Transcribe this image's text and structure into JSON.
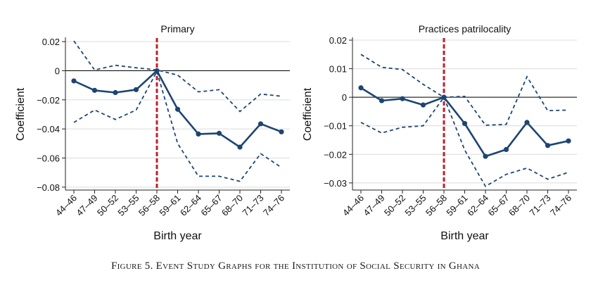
{
  "caption": "Figure 5. Event Study Graphs for the Institution of Social Security in Ghana",
  "chart_data": [
    {
      "type": "line",
      "title": "Primary",
      "xlabel": "Birth year",
      "ylabel": "Coefficient",
      "categories": [
        "44–46",
        "47–49",
        "50–52",
        "53–55",
        "56–58",
        "59–61",
        "62–64",
        "65–67",
        "68–70",
        "71–73",
        "74–76"
      ],
      "yticks": [
        0.02,
        0,
        -0.02,
        -0.04,
        -0.06,
        -0.08
      ],
      "ytick_labels": [
        "0.02",
        "0",
        "−0.02",
        "−0.04",
        "−0.06",
        "−0.08"
      ],
      "ylim": [
        -0.082,
        0.022
      ],
      "reference_line": 0,
      "event_line_category": "56–58",
      "grid": "horizontal",
      "series": [
        {
          "role": "estimate",
          "values": [
            -0.007,
            -0.0135,
            -0.015,
            -0.013,
            0,
            -0.0265,
            -0.0435,
            -0.043,
            -0.0525,
            -0.0365,
            -0.042
          ]
        },
        {
          "role": "upper_ci",
          "values": [
            0.0205,
            0.0005,
            0.0037,
            0.002,
            0.0005,
            -0.003,
            -0.0145,
            -0.013,
            -0.028,
            -0.016,
            -0.0175
          ]
        },
        {
          "role": "lower_ci",
          "values": [
            -0.0355,
            -0.027,
            -0.0335,
            -0.027,
            -0.0005,
            -0.05,
            -0.0725,
            -0.0725,
            -0.076,
            -0.057,
            -0.0665
          ]
        }
      ]
    },
    {
      "type": "line",
      "title": "Practices patrilocality",
      "xlabel": "Birth year",
      "ylabel": "Coefficient",
      "categories": [
        "44–46",
        "47–49",
        "50–52",
        "53–55",
        "56–58",
        "59–61",
        "62–64",
        "65–67",
        "68–70",
        "71–73",
        "74–76"
      ],
      "yticks": [
        0.02,
        0.01,
        0,
        -0.01,
        -0.02,
        -0.03
      ],
      "ytick_labels": [
        "0.02",
        "0.01",
        "0",
        "−0.01",
        "−0.02",
        "−0.03"
      ],
      "ylim": [
        -0.0325,
        0.0205
      ],
      "reference_line": 0,
      "event_line_category": "56–58",
      "grid": "horizontal",
      "series": [
        {
          "role": "estimate",
          "values": [
            0.0033,
            -0.0012,
            -0.0005,
            -0.0027,
            0,
            -0.0092,
            -0.0207,
            -0.0183,
            -0.0088,
            -0.0169,
            -0.0153
          ]
        },
        {
          "role": "upper_ci",
          "values": [
            0.015,
            0.0105,
            0.0097,
            0.0045,
            0,
            0.0003,
            -0.0098,
            -0.0095,
            0.0072,
            -0.0047,
            -0.0045
          ]
        },
        {
          "role": "lower_ci",
          "values": [
            -0.0088,
            -0.0125,
            -0.0105,
            -0.01,
            0,
            -0.0185,
            -0.0312,
            -0.027,
            -0.0248,
            -0.0287,
            -0.0263
          ]
        }
      ]
    }
  ]
}
